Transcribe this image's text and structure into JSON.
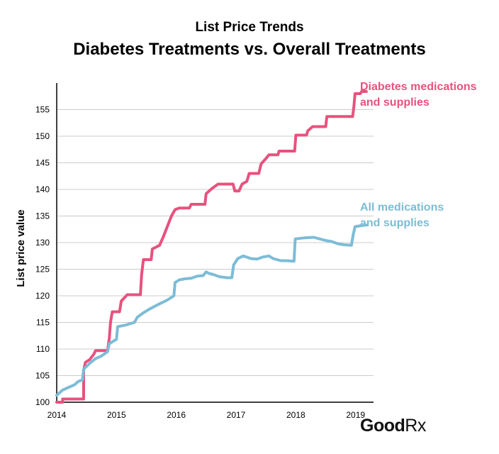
{
  "chart_data": {
    "type": "line",
    "title": "List Price Trends",
    "subtitle": "Diabetes Treatments vs. Overall Treatments",
    "ylabel": "List price value",
    "xlabel": "",
    "xlim": [
      2014,
      2019.3
    ],
    "ylim": [
      100,
      160
    ],
    "x_ticks": [
      "2014",
      "2015",
      "2016",
      "2017",
      "2018",
      "2019"
    ],
    "y_ticks": [
      "100",
      "105",
      "110",
      "115",
      "120",
      "125",
      "130",
      "135",
      "140",
      "145",
      "150",
      "155"
    ],
    "grid": true,
    "legend": "right (inline labels)",
    "series": [
      {
        "name": "Diabetes medications and supplies",
        "label_lines": [
          "Diabetes medications",
          "and supplies"
        ],
        "color": "#e8527e",
        "points": [
          [
            2014.0,
            100.0
          ],
          [
            2014.1,
            100.0
          ],
          [
            2014.1,
            100.6
          ],
          [
            2014.45,
            100.6
          ],
          [
            2014.45,
            106.0
          ],
          [
            2014.48,
            107.5
          ],
          [
            2014.55,
            108.0
          ],
          [
            2014.62,
            109.0
          ],
          [
            2014.65,
            109.7
          ],
          [
            2014.85,
            109.7
          ],
          [
            2014.88,
            112.0
          ],
          [
            2014.9,
            115.0
          ],
          [
            2014.93,
            117.0
          ],
          [
            2015.05,
            117.0
          ],
          [
            2015.08,
            119.0
          ],
          [
            2015.18,
            120.2
          ],
          [
            2015.4,
            120.2
          ],
          [
            2015.42,
            124.0
          ],
          [
            2015.45,
            126.8
          ],
          [
            2015.58,
            126.8
          ],
          [
            2015.6,
            128.8
          ],
          [
            2015.72,
            129.5
          ],
          [
            2015.78,
            131.0
          ],
          [
            2015.85,
            133.0
          ],
          [
            2015.92,
            135.0
          ],
          [
            2015.98,
            136.2
          ],
          [
            2016.05,
            136.5
          ],
          [
            2016.22,
            136.5
          ],
          [
            2016.25,
            137.2
          ],
          [
            2016.48,
            137.2
          ],
          [
            2016.5,
            139.2
          ],
          [
            2016.6,
            140.2
          ],
          [
            2016.7,
            141.0
          ],
          [
            2016.95,
            141.0
          ],
          [
            2016.98,
            139.7
          ],
          [
            2017.05,
            139.7
          ],
          [
            2017.1,
            141.0
          ],
          [
            2017.18,
            141.5
          ],
          [
            2017.22,
            143.0
          ],
          [
            2017.38,
            143.0
          ],
          [
            2017.42,
            144.8
          ],
          [
            2017.5,
            145.8
          ],
          [
            2017.55,
            146.5
          ],
          [
            2017.7,
            146.5
          ],
          [
            2017.72,
            147.2
          ],
          [
            2017.98,
            147.2
          ],
          [
            2018.0,
            150.2
          ],
          [
            2018.18,
            150.2
          ],
          [
            2018.2,
            151.0
          ],
          [
            2018.28,
            151.8
          ],
          [
            2018.5,
            151.8
          ],
          [
            2018.52,
            153.7
          ],
          [
            2018.95,
            153.7
          ],
          [
            2018.97,
            155.5
          ],
          [
            2018.99,
            158.0
          ],
          [
            2019.08,
            158.0
          ],
          [
            2019.1,
            158.4
          ],
          [
            2019.18,
            158.4
          ]
        ]
      },
      {
        "name": "All medications and supplies",
        "label_lines": [
          "All medications",
          "and supplies"
        ],
        "color": "#7dbcd6",
        "points": [
          [
            2014.0,
            101.3
          ],
          [
            2014.1,
            102.3
          ],
          [
            2014.2,
            102.8
          ],
          [
            2014.3,
            103.3
          ],
          [
            2014.36,
            103.9
          ],
          [
            2014.43,
            104.2
          ],
          [
            2014.45,
            106.2
          ],
          [
            2014.55,
            107.3
          ],
          [
            2014.65,
            108.2
          ],
          [
            2014.75,
            108.7
          ],
          [
            2014.85,
            109.5
          ],
          [
            2014.88,
            111.0
          ],
          [
            2014.95,
            111.5
          ],
          [
            2015.0,
            111.8
          ],
          [
            2015.02,
            114.2
          ],
          [
            2015.15,
            114.5
          ],
          [
            2015.3,
            115.0
          ],
          [
            2015.35,
            116.0
          ],
          [
            2015.45,
            116.8
          ],
          [
            2015.55,
            117.5
          ],
          [
            2015.65,
            118.1
          ],
          [
            2015.72,
            118.5
          ],
          [
            2015.85,
            119.2
          ],
          [
            2015.96,
            120.0
          ],
          [
            2015.98,
            122.5
          ],
          [
            2016.05,
            123.0
          ],
          [
            2016.15,
            123.2
          ],
          [
            2016.25,
            123.3
          ],
          [
            2016.35,
            123.7
          ],
          [
            2016.45,
            123.8
          ],
          [
            2016.5,
            124.5
          ],
          [
            2016.55,
            124.2
          ],
          [
            2016.62,
            124.0
          ],
          [
            2016.72,
            123.6
          ],
          [
            2016.85,
            123.4
          ],
          [
            2016.93,
            123.4
          ],
          [
            2016.96,
            125.8
          ],
          [
            2017.03,
            127.0
          ],
          [
            2017.12,
            127.5
          ],
          [
            2017.25,
            127.0
          ],
          [
            2017.35,
            126.9
          ],
          [
            2017.45,
            127.3
          ],
          [
            2017.55,
            127.5
          ],
          [
            2017.62,
            127.0
          ],
          [
            2017.75,
            126.6
          ],
          [
            2017.85,
            126.6
          ],
          [
            2017.97,
            126.5
          ],
          [
            2017.99,
            130.7
          ],
          [
            2018.15,
            130.9
          ],
          [
            2018.3,
            131.0
          ],
          [
            2018.4,
            130.7
          ],
          [
            2018.5,
            130.4
          ],
          [
            2018.6,
            130.2
          ],
          [
            2018.7,
            129.8
          ],
          [
            2018.8,
            129.6
          ],
          [
            2018.93,
            129.5
          ],
          [
            2018.96,
            131.5
          ],
          [
            2018.99,
            133.0
          ],
          [
            2019.1,
            133.2
          ],
          [
            2019.18,
            133.3
          ]
        ]
      }
    ]
  },
  "brand": {
    "name": "Good",
    "rx": "Rx"
  }
}
